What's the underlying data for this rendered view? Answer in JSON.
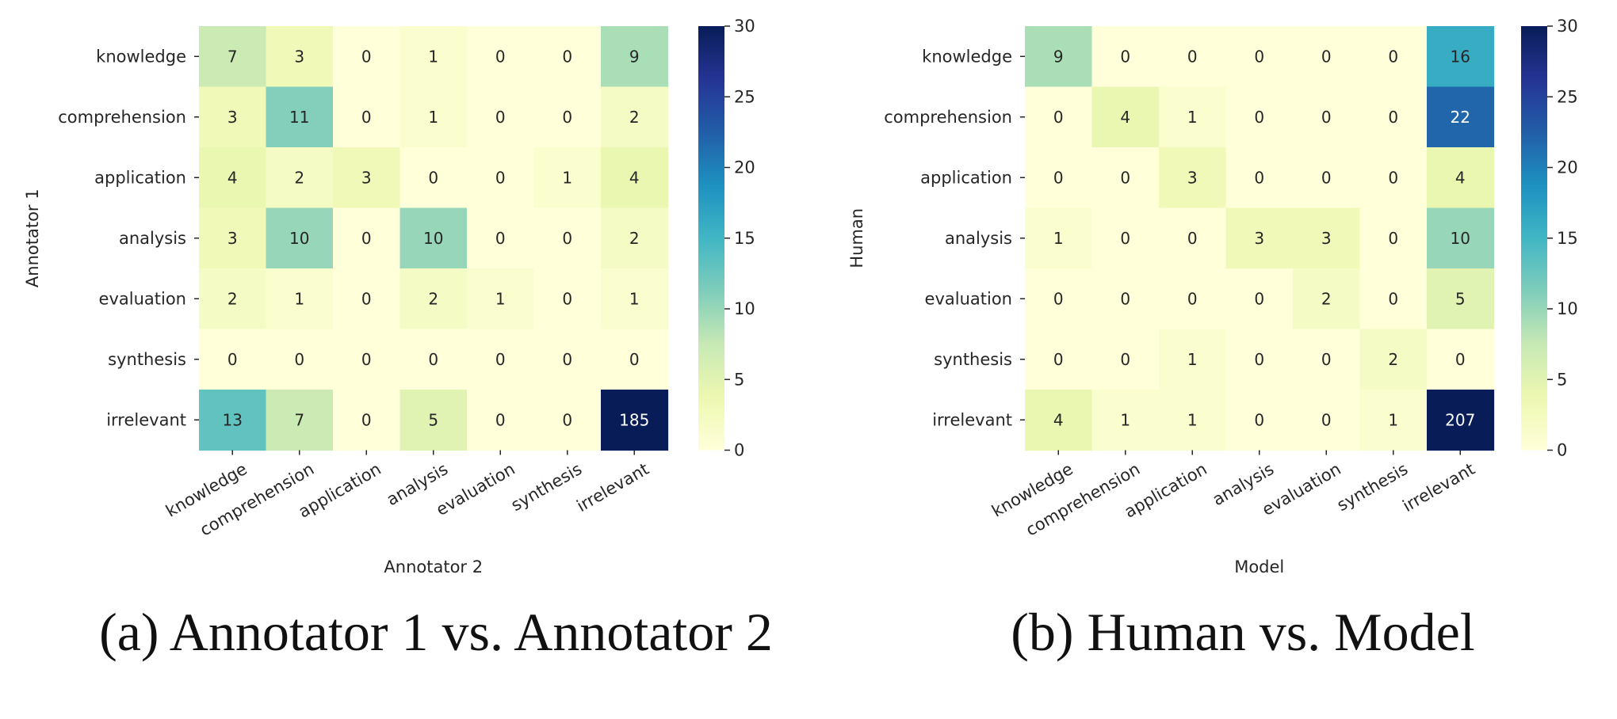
{
  "chart_data": [
    {
      "type": "heatmap",
      "caption": "(a) Annotator 1 vs. Annotator 2",
      "ylabel": "Annotator 1",
      "xlabel": "Annotator 2",
      "rows": [
        "knowledge",
        "comprehension",
        "application",
        "analysis",
        "evaluation",
        "synthesis",
        "irrelevant"
      ],
      "cols": [
        "knowledge",
        "comprehension",
        "application",
        "analysis",
        "evaluation",
        "synthesis",
        "irrelevant"
      ],
      "values": [
        [
          7,
          3,
          0,
          1,
          0,
          0,
          9
        ],
        [
          3,
          11,
          0,
          1,
          0,
          0,
          2
        ],
        [
          4,
          2,
          3,
          0,
          0,
          1,
          4
        ],
        [
          3,
          10,
          0,
          10,
          0,
          0,
          2
        ],
        [
          2,
          1,
          0,
          2,
          1,
          0,
          1
        ],
        [
          0,
          0,
          0,
          0,
          0,
          0,
          0
        ],
        [
          13,
          7,
          0,
          5,
          0,
          0,
          185
        ]
      ],
      "colorbar": {
        "min": 0,
        "max": 30,
        "ticks": [
          0,
          5,
          10,
          15,
          20,
          25,
          30
        ],
        "colormap": "YlGnBu"
      }
    },
    {
      "type": "heatmap",
      "caption": "(b) Human vs. Model",
      "ylabel": "Human",
      "xlabel": "Model",
      "rows": [
        "knowledge",
        "comprehension",
        "application",
        "analysis",
        "evaluation",
        "synthesis",
        "irrelevant"
      ],
      "cols": [
        "knowledge",
        "comprehension",
        "application",
        "analysis",
        "evaluation",
        "synthesis",
        "irrelevant"
      ],
      "values": [
        [
          9,
          0,
          0,
          0,
          0,
          0,
          16
        ],
        [
          0,
          4,
          1,
          0,
          0,
          0,
          22
        ],
        [
          0,
          0,
          3,
          0,
          0,
          0,
          4
        ],
        [
          1,
          0,
          0,
          3,
          3,
          0,
          10
        ],
        [
          0,
          0,
          0,
          0,
          2,
          0,
          5
        ],
        [
          0,
          0,
          1,
          0,
          0,
          2,
          0
        ],
        [
          4,
          1,
          1,
          0,
          0,
          1,
          207
        ]
      ],
      "colorbar": {
        "min": 0,
        "max": 30,
        "ticks": [
          0,
          5,
          10,
          15,
          20,
          25,
          30
        ],
        "colormap": "YlGnBu"
      }
    }
  ]
}
